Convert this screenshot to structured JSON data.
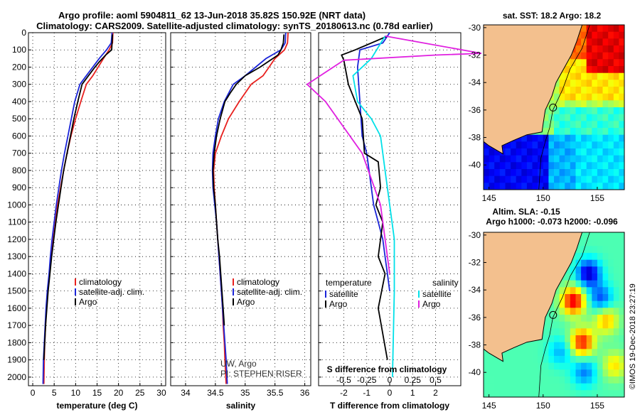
{
  "header": {
    "line1": "Argo profile: aoml 5904811_62 13-Jun-2018 35.82S 150.92E (NRT data)",
    "line2": "Climatology: CARS2009. Satellite-adjusted climatology: synTS_20180613.nc (0.78d earlier)"
  },
  "colors": {
    "climatology": "#e8201e",
    "satellite": "#1a24d8",
    "argo": "#000000",
    "salinity_satellite": "#00e0e8",
    "salinity_argo": "#e020e0"
  },
  "chart_data": [
    {
      "type": "line",
      "panel": "temperature",
      "xlabel": "temperature (deg C)",
      "xlim": [
        -1,
        31
      ],
      "xticks": [
        0,
        5,
        10,
        15,
        20,
        25,
        30
      ],
      "ylim": [
        2050,
        0
      ],
      "yticks": [
        0,
        100,
        200,
        300,
        400,
        500,
        600,
        700,
        800,
        900,
        1000,
        1100,
        1200,
        1300,
        1400,
        1500,
        1600,
        1700,
        1800,
        1900,
        2000
      ],
      "legend": [
        "climatology",
        "satellite-adj. clim.",
        "Argo"
      ],
      "series": [
        {
          "name": "climatology",
          "x": [
            18.7,
            18.6,
            17.8,
            16.5,
            14.0,
            12.5,
            11.2,
            10.0,
            8.9,
            8.0,
            7.2,
            6.5,
            5.8,
            5.3,
            4.8,
            4.3,
            3.9,
            3.5,
            3.2,
            3.0,
            2.8,
            2.7,
            2.6
          ],
          "y": [
            0,
            60,
            100,
            150,
            250,
            300,
            400,
            500,
            600,
            700,
            800,
            900,
            1000,
            1100,
            1200,
            1300,
            1400,
            1500,
            1600,
            1700,
            1800,
            1900,
            2040
          ]
        },
        {
          "name": "satellite-adj. clim.",
          "x": [
            18.5,
            18.3,
            17.2,
            15.5,
            12.5,
            11.0,
            9.8,
            9.0,
            8.2,
            7.4,
            6.7,
            6.1,
            5.5,
            5.0,
            4.5,
            4.1,
            3.8,
            3.4,
            3.1,
            2.9,
            2.7,
            2.5,
            2.4
          ],
          "y": [
            0,
            60,
            100,
            150,
            250,
            300,
            400,
            500,
            600,
            700,
            800,
            900,
            1000,
            1100,
            1200,
            1300,
            1400,
            1500,
            1600,
            1700,
            1800,
            1900,
            2040
          ]
        },
        {
          "name": "Argo",
          "x": [
            18.6,
            18.5,
            18.4,
            17.0,
            15.5,
            14.5,
            13.0,
            11.5,
            10.5,
            9.6,
            8.8,
            8.0,
            7.2,
            6.6,
            6.0,
            5.4,
            4.9,
            4.4,
            4.0,
            3.6,
            3.3,
            3.0,
            2.8,
            2.6
          ],
          "y": [
            10,
            60,
            100,
            130,
            170,
            200,
            250,
            300,
            400,
            500,
            600,
            700,
            800,
            900,
            1000,
            1100,
            1200,
            1300,
            1400,
            1500,
            1600,
            1700,
            1800,
            1900
          ]
        }
      ]
    },
    {
      "type": "line",
      "panel": "salinity",
      "xlabel": "salinity",
      "xlim": [
        33.75,
        36.1
      ],
      "xticks": [
        34,
        34.5,
        35,
        35.5,
        36
      ],
      "xticklabels": [
        "34",
        "34.5",
        "35",
        "35.5",
        "36"
      ],
      "ylim": [
        2050,
        0
      ],
      "legend": [
        "climatology",
        "satellite-adj. clim.",
        "Argo"
      ],
      "annotation": [
        "UW, Argo",
        "PI: STEPHEN RISER"
      ],
      "series": [
        {
          "name": "climatology",
          "x": [
            35.72,
            35.71,
            35.66,
            35.5,
            35.3,
            35.1,
            34.9,
            34.72,
            34.6,
            34.5,
            34.47,
            34.48,
            34.5,
            34.52,
            34.54,
            34.56,
            34.58,
            34.6,
            34.62,
            34.63,
            34.65,
            34.66,
            34.68
          ],
          "y": [
            0,
            60,
            100,
            150,
            250,
            300,
            400,
            500,
            600,
            700,
            800,
            900,
            1000,
            1100,
            1200,
            1300,
            1400,
            1500,
            1600,
            1700,
            1800,
            1900,
            2040
          ]
        },
        {
          "name": "satellite-adj. clim.",
          "x": [
            35.68,
            35.67,
            35.6,
            35.35,
            35.0,
            34.8,
            34.65,
            34.55,
            34.5,
            34.46,
            34.45,
            34.46,
            34.49,
            34.52,
            34.54,
            34.56,
            34.58,
            34.6,
            34.62,
            34.64,
            34.66,
            34.68,
            34.7
          ],
          "y": [
            0,
            60,
            100,
            150,
            250,
            300,
            400,
            500,
            600,
            700,
            800,
            900,
            1000,
            1100,
            1200,
            1300,
            1400,
            1500,
            1600,
            1700,
            1800,
            1900,
            2040
          ]
        },
        {
          "name": "Argo",
          "x": [
            35.65,
            35.64,
            35.6,
            35.55,
            35.25,
            35.0,
            34.85,
            34.75,
            34.66,
            34.58,
            34.52,
            34.48,
            34.46,
            34.47,
            34.5,
            34.52,
            34.54,
            34.57,
            34.59,
            34.61,
            34.63,
            34.65
          ],
          "y": [
            10,
            60,
            100,
            130,
            200,
            250,
            300,
            350,
            400,
            500,
            600,
            700,
            800,
            900,
            1000,
            1100,
            1200,
            1300,
            1400,
            1500,
            1600,
            1700
          ]
        }
      ]
    },
    {
      "type": "line",
      "panel": "difference",
      "xlabel": "T difference from climatology",
      "x2label": "S difference from climatology",
      "xlim": [
        -3.1,
        3.1
      ],
      "xticks": [
        -2,
        -1,
        0,
        1,
        2
      ],
      "x2ticks": [
        "-0.5",
        "-0.25",
        "0",
        "0.25",
        "0.5"
      ],
      "ylim": [
        2050,
        0
      ],
      "legend_left": [
        "temperature",
        "satellite",
        "Argo"
      ],
      "legend_right": [
        "salinity",
        "satellite",
        "Argo"
      ],
      "series": [
        {
          "name": "temperature satellite",
          "x": [
            0,
            -0.3,
            -1.3,
            -1.4,
            -1.3,
            -1.2,
            -1.0,
            -0.9,
            -0.8,
            -0.7,
            -0.5,
            -0.3,
            -0.2,
            -0.1,
            0
          ],
          "y": [
            0,
            60,
            100,
            200,
            400,
            600,
            700,
            800,
            900,
            1000,
            1100,
            1200,
            1300,
            1400,
            1500
          ]
        },
        {
          "name": "temperature Argo",
          "x": [
            -0.1,
            -1.5,
            -2.1,
            -2.0,
            -1.8,
            -1.2,
            -1.1,
            -0.5,
            -0.4,
            -0.6,
            -0.3,
            -0.5,
            -0.2,
            -0.5,
            -0.1
          ],
          "y": [
            20,
            100,
            130,
            160,
            300,
            500,
            700,
            750,
            900,
            1000,
            1100,
            1300,
            1400,
            1600,
            1900
          ]
        },
        {
          "name": "salinity satellite",
          "x": [
            -0.05,
            -0.2,
            -0.4,
            -0.35,
            -0.2,
            -0.1,
            -0.05,
            0,
            0.05,
            0.05,
            0.03
          ],
          "y": [
            20,
            150,
            250,
            400,
            500,
            600,
            800,
            1000,
            1200,
            1500,
            2000
          ]
        },
        {
          "name": "salinity Argo",
          "x": [
            -0.05,
            1.0,
            0.5,
            -0.5,
            -0.9,
            -0.7,
            -0.3,
            -0.1,
            0
          ],
          "y": [
            20,
            120,
            130,
            160,
            300,
            400,
            700,
            1000,
            1400
          ]
        }
      ]
    },
    {
      "type": "heatmap",
      "panel": "sst_map",
      "title": "sat. SST: 18.2 Argo: 18.2",
      "xlim": [
        144.5,
        157.5
      ],
      "xticks": [
        145,
        150,
        155
      ],
      "ylim": [
        -41.8,
        -29.8
      ],
      "yticks": [
        -30,
        -32,
        -34,
        -36,
        -38,
        -40
      ],
      "marker": {
        "lon": 150.92,
        "lat": -35.82
      }
    },
    {
      "type": "heatmap",
      "panel": "sla_map",
      "title": "Altim. SLA: -0.15",
      "subtitle": "Argo h1000: -0.073 h2000: -0.096",
      "xlim": [
        144.5,
        157.5
      ],
      "xticks": [
        145,
        150,
        155
      ],
      "ylim": [
        -41.8,
        -29.8
      ],
      "yticks": [
        -30,
        -32,
        -34,
        -36,
        -38,
        -40
      ],
      "marker": {
        "lon": 150.92,
        "lat": -35.82
      }
    }
  ],
  "footer": {
    "credit": "©IMOS 19-Dec-2018 23:27:19"
  }
}
